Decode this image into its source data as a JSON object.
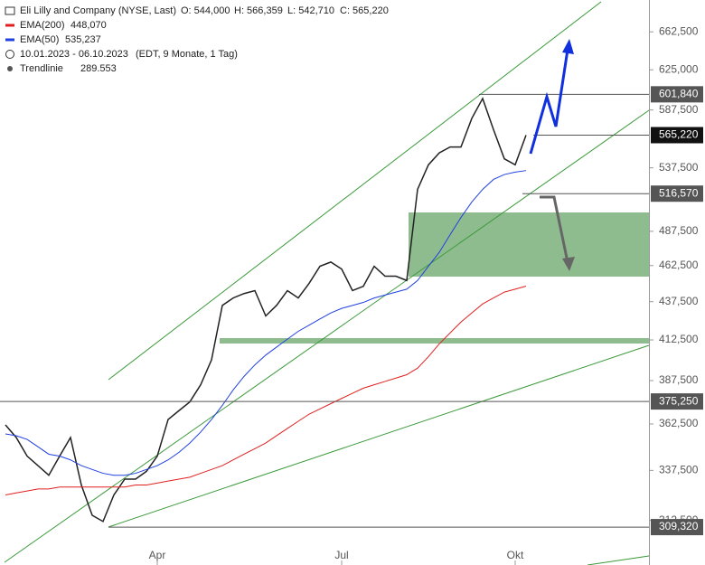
{
  "chart_data": {
    "type": "line",
    "log_scale": true,
    "header": {
      "ohlc": [
        "O: 544,000",
        "H: 566,359",
        "L: 542,710",
        "C: 565,220"
      ],
      "range": "10.01.2023 - 06.10.2023",
      "range_note": "(EDT, 9 Monate, 1 Tag)",
      "trend_name": "Trendlinie",
      "trend_value": "289.553"
    },
    "categories": [
      null,
      null,
      null,
      null,
      null,
      null,
      null,
      null,
      null,
      null,
      null,
      null,
      null,
      null,
      "Apr",
      null,
      null,
      null,
      null,
      null,
      null,
      null,
      null,
      null,
      null,
      null,
      null,
      null,
      null,
      null,
      null,
      "Jul",
      null,
      null,
      null,
      null,
      null,
      null,
      null,
      null,
      null,
      null,
      null,
      null,
      null,
      null,
      null,
      "Okt",
      null,
      null,
      null,
      null,
      null,
      null,
      null,
      null,
      null,
      null,
      null,
      null
    ],
    "series": [
      {
        "name": "Eli Lilly and Company (NYSE, Last)",
        "color": "#222222",
        "values": [
          362,
          355,
          345,
          340,
          335,
          345,
          355,
          330,
          315,
          312,
          325,
          333,
          333,
          337,
          345,
          365,
          370,
          375,
          385,
          400,
          435,
          440,
          443,
          445,
          428,
          435,
          445,
          440,
          450,
          462,
          465,
          460,
          445,
          448,
          462,
          455,
          455,
          452,
          520,
          540,
          550,
          555,
          555,
          580,
          598,
          570,
          545,
          540,
          565.22,
          null,
          null,
          null,
          null,
          null,
          null,
          null,
          null,
          null,
          null,
          null
        ]
      },
      {
        "name": "EMA(200)",
        "color": "#e02020",
        "last_value_label": "448,070",
        "values": [
          325,
          326,
          327,
          328,
          328,
          329,
          329,
          329,
          329,
          329,
          329,
          329,
          330,
          330,
          331,
          332,
          333,
          334,
          336,
          338,
          340,
          343,
          346,
          349,
          352,
          356,
          360,
          364,
          368,
          371,
          374,
          377,
          380,
          383,
          385,
          387,
          389,
          391,
          395,
          402,
          410,
          417,
          424,
          430,
          436,
          440,
          444,
          446,
          448.07,
          null,
          null,
          null,
          null,
          null,
          null,
          null,
          null,
          null,
          null,
          null
        ]
      },
      {
        "name": "EMA(50)",
        "color": "#2040e0",
        "last_value_label": "535,237",
        "values": [
          357,
          356,
          354,
          350,
          346,
          345,
          343,
          340,
          338,
          336,
          335,
          335,
          336,
          338,
          340,
          343,
          347,
          352,
          358,
          365,
          373,
          382,
          390,
          397,
          403,
          408,
          413,
          418,
          422,
          426,
          430,
          433,
          435,
          437,
          440,
          442,
          444,
          446,
          452,
          462,
          472,
          485,
          498,
          510,
          520,
          528,
          532,
          534,
          535.237,
          null,
          null,
          null,
          null,
          null,
          null,
          null,
          null,
          null,
          null,
          null
        ]
      }
    ],
    "ylim": [
      291.8,
      695.8
    ],
    "yticks": [
      {
        "value": 312.5,
        "label": "312,500"
      },
      {
        "value": 337.5,
        "label": "337,500"
      },
      {
        "value": 362.5,
        "label": "362,500"
      },
      {
        "value": 387.5,
        "label": "387,500"
      },
      {
        "value": 412.5,
        "label": "412,500"
      },
      {
        "value": 437.5,
        "label": "437,500"
      },
      {
        "value": 462.5,
        "label": "462,500"
      },
      {
        "value": 487.5,
        "label": "487,500"
      },
      {
        "value": 537.5,
        "label": "537,500"
      },
      {
        "value": 587.5,
        "label": "587,500"
      },
      {
        "value": 625,
        "label": "625,000"
      },
      {
        "value": 662.5,
        "label": "662,500"
      }
    ],
    "levels": [
      {
        "value": 601.84,
        "label": "601,840",
        "color": "#555555"
      },
      {
        "value": 565.22,
        "label": "565,220",
        "color": "#111111"
      },
      {
        "value": 516.57,
        "label": "516,570",
        "color": "#555555"
      },
      {
        "value": 375.25,
        "label": "375,250",
        "color": "#555555"
      },
      {
        "value": 309.32,
        "label": "309,320",
        "color": "#555555"
      }
    ]
  }
}
